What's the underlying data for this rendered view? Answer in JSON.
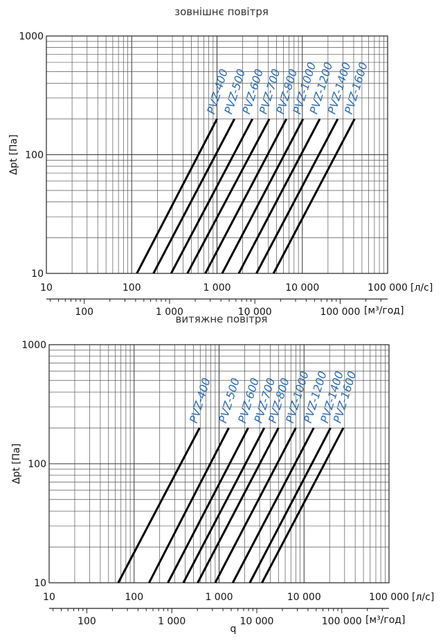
{
  "chart_data": [
    {
      "type": "line",
      "title": "зовнішнє повітря",
      "ylabel": "Δpt [Па]",
      "x_unit": "[л/с]",
      "x2_unit": "[м³/год]",
      "x_scale": "log",
      "y_scale": "log",
      "xlim": [
        10,
        100000
      ],
      "ylim": [
        10,
        1000
      ],
      "x_ticks": [
        "10",
        "100",
        "1 000",
        "10 000",
        "100 000"
      ],
      "y_ticks": [
        "10",
        "100",
        "1000"
      ],
      "x2_ticks": [
        "100",
        "1 000",
        "10 000",
        "100 000"
      ],
      "grid": true,
      "series": [
        {
          "name": "PVZ-400",
          "x": [
            115,
            1000
          ],
          "y": [
            10,
            200
          ]
        },
        {
          "name": "PVZ-500",
          "x": [
            180,
            1600
          ],
          "y": [
            10,
            200
          ]
        },
        {
          "name": "PVZ-600",
          "x": [
            290,
            2600
          ],
          "y": [
            10,
            200
          ]
        },
        {
          "name": "PVZ-700",
          "x": [
            450,
            4100
          ],
          "y": [
            10,
            200
          ]
        },
        {
          "name": "PVZ-800",
          "x": [
            730,
            6500
          ],
          "y": [
            10,
            200
          ]
        },
        {
          "name": "PVZ-1000",
          "x": [
            1150,
            10200
          ],
          "y": [
            10,
            200
          ]
        },
        {
          "name": "PVZ-1200",
          "x": [
            1800,
            16000
          ],
          "y": [
            10,
            200
          ]
        },
        {
          "name": "PVZ-1400",
          "x": [
            2900,
            26000
          ],
          "y": [
            10,
            200
          ]
        },
        {
          "name": "PVZ-1600",
          "x": [
            4600,
            41000
          ],
          "y": [
            10,
            200
          ]
        }
      ]
    },
    {
      "type": "line",
      "title": "витяжне повітря",
      "ylabel": "Δpt [Па]",
      "xlabel": "q",
      "x_unit": "[л/с]",
      "x2_unit": "[м³/год]",
      "x_scale": "log",
      "y_scale": "log",
      "xlim": [
        10,
        100000
      ],
      "ylim": [
        10,
        1000
      ],
      "x_ticks": [
        "10",
        "100",
        "1 000",
        "10 000",
        "100 000"
      ],
      "y_ticks": [
        "10",
        "100",
        "1000"
      ],
      "x2_ticks": [
        "100",
        "1 000",
        "10 000",
        "100 000"
      ],
      "grid": true,
      "series": [
        {
          "name": "PVZ-400",
          "x": [
            65,
            590
          ],
          "y": [
            10,
            200
          ]
        },
        {
          "name": "PVZ-500",
          "x": [
            150,
            1300
          ],
          "y": [
            10,
            200
          ]
        },
        {
          "name": "PVZ-600",
          "x": [
            250,
            2200
          ],
          "y": [
            10,
            200
          ]
        },
        {
          "name": "PVZ-700",
          "x": [
            380,
            3400
          ],
          "y": [
            10,
            200
          ]
        },
        {
          "name": "PVZ-800",
          "x": [
            560,
            5000
          ],
          "y": [
            10,
            200
          ]
        },
        {
          "name": "PVZ-1000",
          "x": [
            900,
            8000
          ],
          "y": [
            10,
            200
          ]
        },
        {
          "name": "PVZ-1200",
          "x": [
            1450,
            13000
          ],
          "y": [
            10,
            200
          ]
        },
        {
          "name": "PVZ-1400",
          "x": [
            2300,
            20500
          ],
          "y": [
            10,
            200
          ]
        },
        {
          "name": "PVZ-1600",
          "x": [
            3200,
            29000
          ],
          "y": [
            10,
            200
          ]
        }
      ]
    }
  ]
}
